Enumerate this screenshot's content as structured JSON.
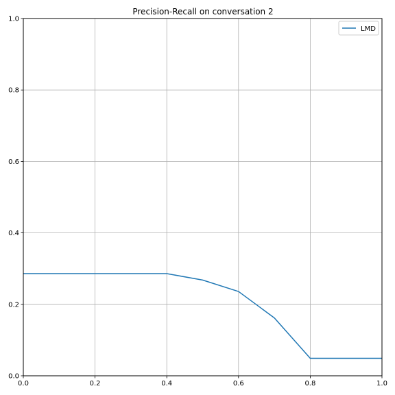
{
  "chart_data": {
    "type": "line",
    "title": "Precision-Recall on conversation 2",
    "xlabel": "",
    "ylabel": "",
    "xlim": [
      0.0,
      1.0
    ],
    "ylim": [
      0.0,
      1.0
    ],
    "xticks": [
      0.0,
      0.2,
      0.4,
      0.6,
      0.8,
      1.0
    ],
    "yticks": [
      0.0,
      0.2,
      0.4,
      0.6,
      0.8,
      1.0
    ],
    "xtick_labels": [
      "0.0",
      "0.2",
      "0.4",
      "0.6",
      "0.8",
      "1.0"
    ],
    "ytick_labels": [
      "0.0",
      "0.2",
      "0.4",
      "0.6",
      "0.8",
      "1.0"
    ],
    "grid": true,
    "legend_position": "top-right",
    "series": [
      {
        "name": "LMD",
        "color": "#1f77b4",
        "x": [
          0.0,
          0.1,
          0.2,
          0.3,
          0.4,
          0.5,
          0.6,
          0.7,
          0.8,
          0.9,
          1.0
        ],
        "y": [
          0.286,
          0.286,
          0.286,
          0.286,
          0.286,
          0.268,
          0.236,
          0.162,
          0.049,
          0.049,
          0.049
        ]
      }
    ]
  }
}
